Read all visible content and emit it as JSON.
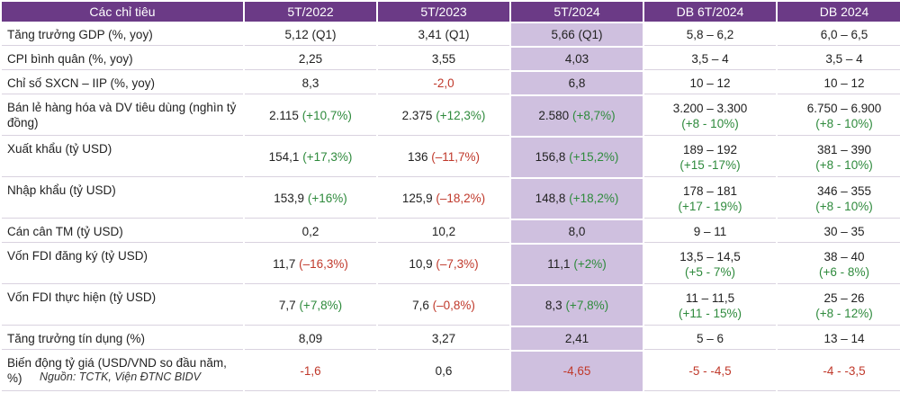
{
  "header": [
    "Các chỉ tiêu",
    "5T/2022",
    "5T/2023",
    "5T/2024",
    "DB 6T/2024",
    "DB 2024"
  ],
  "rows": [
    {
      "label": "Tăng trưởng GDP (%, yoy)",
      "cells": [
        {
          "main": "5,12 (Q1)"
        },
        {
          "main": "3,41 (Q1)"
        },
        {
          "main": "5,66 (Q1)"
        },
        {
          "main": "5,8 – 6,2"
        },
        {
          "main": "6,0 – 6,5"
        }
      ]
    },
    {
      "label": "CPI bình quân (%, yoy)",
      "cells": [
        {
          "main": "2,25"
        },
        {
          "main": "3,55"
        },
        {
          "main": "4,03"
        },
        {
          "main": "3,5 – 4"
        },
        {
          "main": "3,5 – 4"
        }
      ]
    },
    {
      "label": "Chỉ số SXCN – IIP (%, yoy)",
      "cells": [
        {
          "main": "8,3"
        },
        {
          "main": "-2,0",
          "main_tone": "neg"
        },
        {
          "main": "6,8"
        },
        {
          "main": "10 – 12"
        },
        {
          "main": "10 – 12"
        }
      ]
    },
    {
      "label": "Bán lẻ hàng hóa và DV tiêu dùng (nghìn tỷ đồng)",
      "cells": [
        {
          "main": "2.115",
          "change": "(+10,7%)",
          "tone": "pos"
        },
        {
          "main": "2.375",
          "change": "(+12,3%)",
          "tone": "pos"
        },
        {
          "main": "2.580",
          "change": "(+8,7%)",
          "tone": "pos"
        },
        {
          "main": "3.200 – 3.300",
          "change": "(+8 ‐ 10%)",
          "tone": "pos",
          "stack": true
        },
        {
          "main": "6.750 – 6.900",
          "change": "(+8 ‐ 10%)",
          "tone": "pos",
          "stack": true
        }
      ]
    },
    {
      "label": "Xuất khẩu (tỷ USD)",
      "cells": [
        {
          "main": "154,1",
          "change": "(+17,3%)",
          "tone": "pos"
        },
        {
          "main": "136",
          "change": "(–11,7%)",
          "tone": "neg"
        },
        {
          "main": "156,8",
          "change": "(+15,2%)",
          "tone": "pos"
        },
        {
          "main": "189 – 192",
          "change": "(+15 ‐17%)",
          "tone": "pos",
          "stack": true
        },
        {
          "main": "381 – 390",
          "change": "(+8 ‐ 10%)",
          "tone": "pos",
          "stack": true
        }
      ]
    },
    {
      "label": "Nhập khẩu (tỷ USD)",
      "cells": [
        {
          "main": "153,9",
          "change": "(+16%)",
          "tone": "pos"
        },
        {
          "main": "125,9",
          "change": "(–18,2%)",
          "tone": "neg"
        },
        {
          "main": "148,8",
          "change": "(+18,2%)",
          "tone": "pos"
        },
        {
          "main": "178 – 181",
          "change": "(+17 ‐ 19%)",
          "tone": "pos",
          "stack": true
        },
        {
          "main": "346 – 355",
          "change": "(+8 ‐ 10%)",
          "tone": "pos",
          "stack": true
        }
      ]
    },
    {
      "label": "Cán cân TM (tỷ USD)",
      "cells": [
        {
          "main": "0,2"
        },
        {
          "main": "10,2"
        },
        {
          "main": "8,0"
        },
        {
          "main": "9 – 11"
        },
        {
          "main": "30 – 35"
        }
      ]
    },
    {
      "label": "Vốn FDI đăng ký (tỷ USD)",
      "cells": [
        {
          "main": "11,7",
          "change": "(–16,3%)",
          "tone": "neg"
        },
        {
          "main": "10,9",
          "change": "(–7,3%)",
          "tone": "neg"
        },
        {
          "main": "11,1",
          "change": "(+2%)",
          "tone": "pos"
        },
        {
          "main": "13,5 – 14,5",
          "change": "(+5 ‐ 7%)",
          "tone": "pos",
          "stack": true
        },
        {
          "main": "38 – 40",
          "change": "(+6 ‐ 8%)",
          "tone": "pos",
          "stack": true
        }
      ]
    },
    {
      "label": "Vốn FDI thực hiện (tỷ USD)",
      "cells": [
        {
          "main": "7,7",
          "change": "(+7,8%)",
          "tone": "pos"
        },
        {
          "main": "7,6",
          "change": "(–0,8%)",
          "tone": "neg"
        },
        {
          "main": "8,3",
          "change": "(+7,8%)",
          "tone": "pos"
        },
        {
          "main": "11 – 11,5",
          "change": "(+11 ‐ 15%)",
          "tone": "pos",
          "stack": true
        },
        {
          "main": "25 – 26",
          "change": "(+8 ‐ 12%)",
          "tone": "pos",
          "stack": true
        }
      ]
    },
    {
      "label": "Tăng trưởng tín dụng (%)",
      "cells": [
        {
          "main": "8,09"
        },
        {
          "main": "3,27"
        },
        {
          "main": "2,41"
        },
        {
          "main": "5 – 6"
        },
        {
          "main": "13 – 14"
        }
      ]
    },
    {
      "label": "Biến động tỷ giá (USD/VND so đầu năm, %)",
      "cells": [
        {
          "main": "-1,6",
          "main_tone": "neg"
        },
        {
          "main": "0,6"
        },
        {
          "main": "-4,65",
          "main_tone": "neg"
        },
        {
          "main": "-5 ‐ -4,5",
          "main_tone": "neg"
        },
        {
          "main": "-4 ‐ -3,5",
          "main_tone": "neg"
        }
      ]
    }
  ],
  "row_sizes": [
    "sm",
    "sm",
    "sm",
    "lg",
    "lg",
    "lg",
    "sm",
    "lg",
    "lg",
    "sm",
    "lg"
  ],
  "source": "Nguồn: TCTK, Viện ĐTNC BIDV",
  "colors": {
    "header_bg": "#6b3a86",
    "highlight": "#cfc0df",
    "positive": "#2e8a3c",
    "negative": "#c0392b"
  }
}
